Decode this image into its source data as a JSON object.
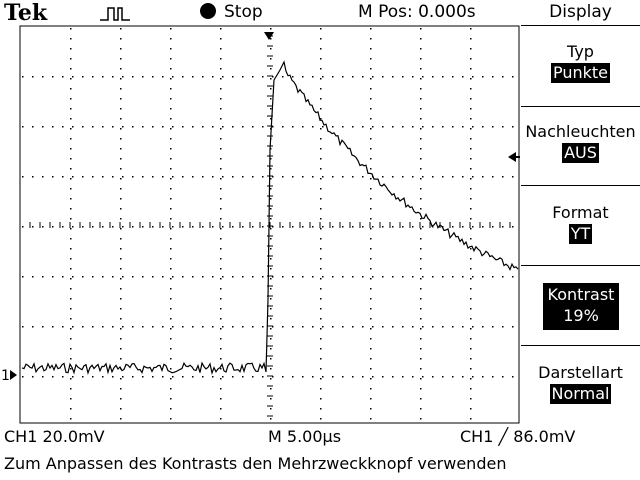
{
  "header": {
    "brand": "Tek",
    "run_state": "Stop",
    "m_pos": "M Pos: 0.000s"
  },
  "menu": {
    "title": "Display",
    "items": [
      {
        "label": "Typ",
        "value": "Punkte"
      },
      {
        "label": "Nachleuchten",
        "value": "AUS"
      },
      {
        "label": "Format",
        "value": "YT"
      },
      {
        "label": "Kontrast",
        "value": "19%"
      },
      {
        "label": "Darstellart",
        "value": "Normal"
      }
    ]
  },
  "status": {
    "ch1_scale": "CH1  20.0mV",
    "timebase": "M 5.00µs",
    "trigger": "CH1 ╱ 86.0mV"
  },
  "channel_marker": "1",
  "help_text": "Zum Anpassen des Kontrasts den Mehrzweckknopf verwenden"
}
